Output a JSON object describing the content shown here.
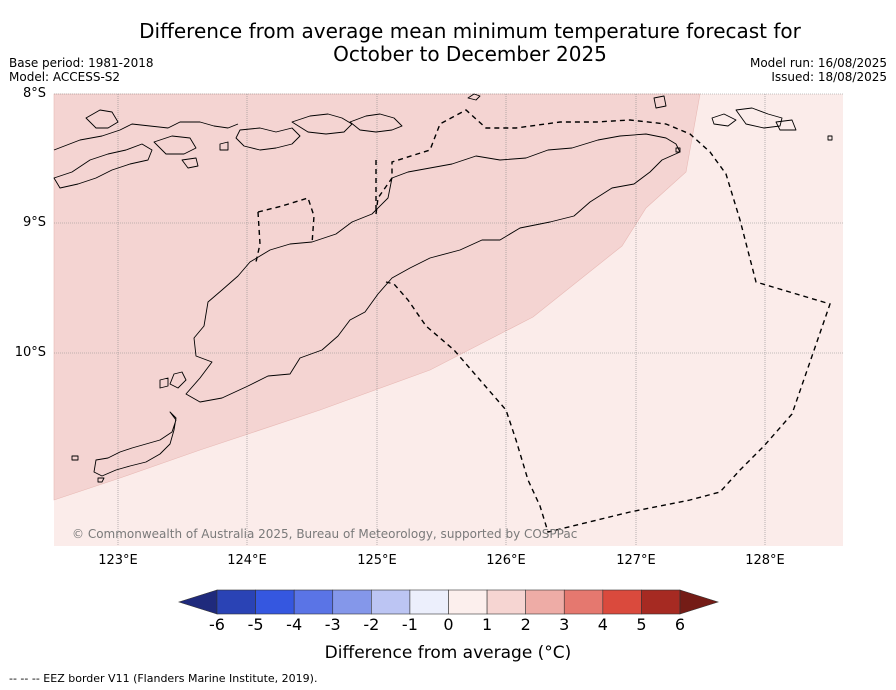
{
  "title": {
    "line1": "Difference from average mean minimum temperature forecast for",
    "line2": "October to December 2025"
  },
  "meta": {
    "base_period": "Base period: 1981-2018",
    "model": "Model: ACCESS-S2",
    "model_run": "Model run: 16/08/2025",
    "issued": "Issued: 18/08/2025"
  },
  "map": {
    "latitude_labels": [
      "8°S",
      "9°S",
      "10°S"
    ],
    "longitude_labels": [
      "123°E",
      "124°E",
      "125°E",
      "126°E",
      "127°E",
      "128°E"
    ],
    "copyright": "© Commonwealth of Australia 2025, Bureau of Meteorology, supported by COSPPac",
    "bands": [
      {
        "range": "1 to 2",
        "color": "#f4d4d2"
      },
      {
        "range": "0 to 1",
        "color": "#fbecea"
      }
    ],
    "boundary_style": "dashed",
    "coastline_color": "#000000"
  },
  "colorbar": {
    "ticks": [
      "-6",
      "-5",
      "-4",
      "-3",
      "-2",
      "-1",
      "0",
      "1",
      "2",
      "3",
      "4",
      "5",
      "6"
    ],
    "colors": [
      "#1f2a7c",
      "#2a43b5",
      "#3557e0",
      "#5a74e6",
      "#8497ea",
      "#bcc5f3",
      "#eceffc",
      "#fcefed",
      "#f6d5d2",
      "#eeaca6",
      "#e5786f",
      "#da4a3d",
      "#a62a22",
      "#741c16"
    ],
    "label": "Difference from average (°C)"
  },
  "footnote": "--  --  -- EEZ border V11 (Flanders Marine Institute, 2019)."
}
